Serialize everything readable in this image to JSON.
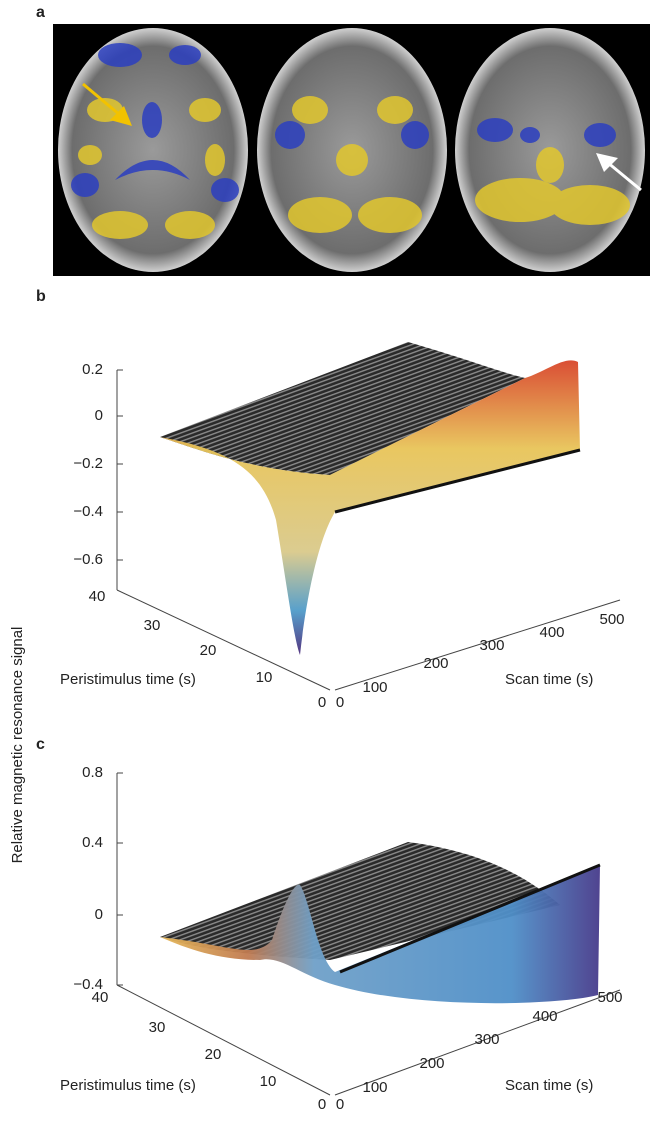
{
  "figure": {
    "y_axis_label": "Relative magnetic resonance signal",
    "panels": [
      {
        "label": "a"
      },
      {
        "label": "b",
        "y_ticks": [
          "0.2",
          "0",
          "−0.2",
          "−0.4",
          "−0.6"
        ],
        "peristimulus_ticks": [
          "40",
          "30",
          "20",
          "10",
          "0"
        ],
        "scan_ticks": [
          "0",
          "100",
          "200",
          "300",
          "400",
          "500"
        ],
        "peristimulus_label": "Peristimulus time (s)",
        "scan_label": "Scan time (s)"
      },
      {
        "label": "c",
        "y_ticks": [
          "0.8",
          "0.4",
          "0",
          "−0.4"
        ],
        "peristimulus_ticks": [
          "40",
          "30",
          "20",
          "10",
          "0"
        ],
        "scan_ticks": [
          "0",
          "100",
          "200",
          "300",
          "400",
          "500"
        ],
        "peristimulus_label": "Peristimulus time (s)",
        "scan_label": "Scan time (s)"
      }
    ]
  }
}
